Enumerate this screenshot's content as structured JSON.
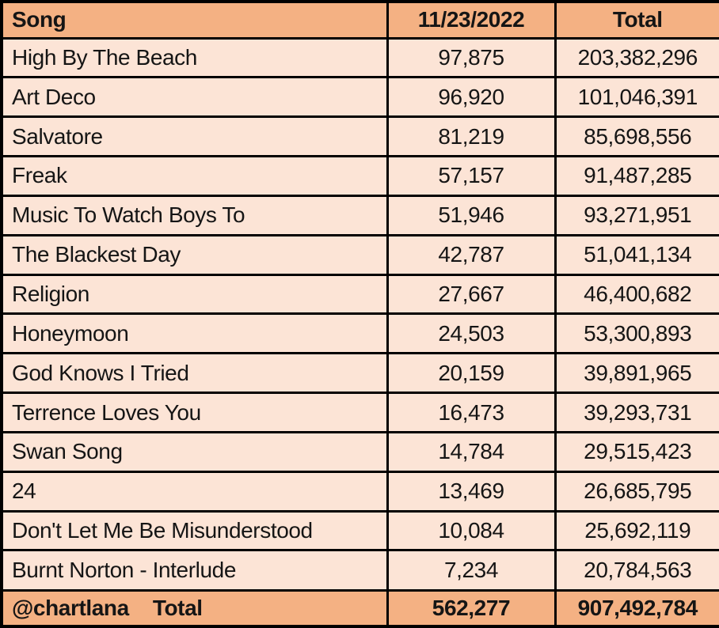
{
  "table": {
    "columns": [
      {
        "label": "Song"
      },
      {
        "label": "11/23/2022"
      },
      {
        "label": "Total"
      }
    ],
    "rows": [
      {
        "song": "High By The Beach",
        "day": "97,875",
        "total": "203,382,296"
      },
      {
        "song": "Art Deco",
        "day": "96,920",
        "total": "101,046,391"
      },
      {
        "song": "Salvatore",
        "day": "81,219",
        "total": "85,698,556"
      },
      {
        "song": "Freak",
        "day": "57,157",
        "total": "91,487,285"
      },
      {
        "song": "Music To Watch Boys To",
        "day": "51,946",
        "total": "93,271,951"
      },
      {
        "song": "The Blackest Day",
        "day": "42,787",
        "total": "51,041,134"
      },
      {
        "song": "Religion",
        "day": "27,667",
        "total": "46,400,682"
      },
      {
        "song": "Honeymoon",
        "day": "24,503",
        "total": "53,300,893"
      },
      {
        "song": "God Knows I Tried",
        "day": "20,159",
        "total": "39,891,965"
      },
      {
        "song": "Terrence Loves You",
        "day": "16,473",
        "total": "39,293,731"
      },
      {
        "song": "Swan Song",
        "day": "14,784",
        "total": "29,515,423"
      },
      {
        "song": "24",
        "day": "13,469",
        "total": "26,685,795"
      },
      {
        "song": "Don't Let Me Be Misunderstood",
        "day": "10,084",
        "total": "25,692,119"
      },
      {
        "song": "Burnt Norton - Interlude",
        "day": "7,234",
        "total": "20,784,563"
      }
    ],
    "footer": {
      "handle": "@chartlana",
      "label": "Total",
      "day": "562,277",
      "total": "907,492,784"
    }
  },
  "colors": {
    "header_bg": "#F4B183",
    "row_bg": "#FCE4D6",
    "border_color": "#000000",
    "text_color": "#151515"
  },
  "chart_data": {
    "type": "table",
    "title": "Daily and total streams by song (@chartlana), 11/23/2022",
    "columns": [
      "Song",
      "11/23/2022",
      "Total"
    ],
    "rows": [
      [
        "High By The Beach",
        97875,
        203382296
      ],
      [
        "Art Deco",
        96920,
        101046391
      ],
      [
        "Salvatore",
        81219,
        85698556
      ],
      [
        "Freak",
        57157,
        91487285
      ],
      [
        "Music To Watch Boys To",
        51946,
        93271951
      ],
      [
        "The Blackest Day",
        42787,
        51041134
      ],
      [
        "Religion",
        27667,
        46400682
      ],
      [
        "Honeymoon",
        24503,
        53300893
      ],
      [
        "God Knows I Tried",
        20159,
        39891965
      ],
      [
        "Terrence Loves You",
        16473,
        39293731
      ],
      [
        "Swan Song",
        14784,
        29515423
      ],
      [
        "24",
        13469,
        26685795
      ],
      [
        "Don't Let Me Be Misunderstood",
        10084,
        25692119
      ],
      [
        "Burnt Norton - Interlude",
        7234,
        20784563
      ]
    ],
    "totals_row": [
      "@chartlana Total",
      562277,
      907492784
    ]
  }
}
